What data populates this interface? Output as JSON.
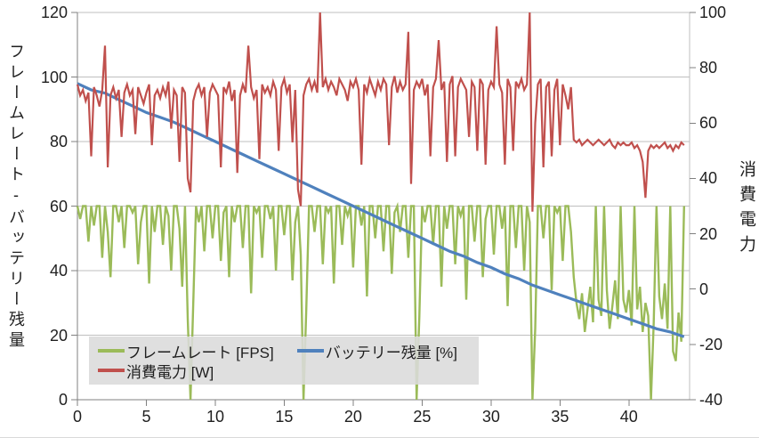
{
  "chart_data": {
    "type": "line",
    "title": "",
    "x_axis": {
      "min": 0,
      "max": 44.4,
      "tick_step": 5,
      "ticks": [
        0,
        5,
        10,
        15,
        20,
        25,
        30,
        35,
        40
      ]
    },
    "left_y_axis": {
      "title": "フレームレート-バッテリー残量",
      "min": 0,
      "max": 120,
      "tick_step": 20,
      "ticks": [
        120,
        100,
        80,
        60,
        40,
        20,
        0
      ]
    },
    "right_y_axis": {
      "title": "消費電力",
      "min": -40,
      "max": 100,
      "tick_step": 20,
      "ticks": [
        100,
        80,
        60,
        40,
        20,
        0,
        -20,
        -40
      ]
    },
    "grid": "horizontal-major-only",
    "legend": {
      "position": "bottom-left-inside"
    },
    "colors": {
      "grid": "#bfbfbf",
      "axis": "#808080",
      "legend_bg": "#dbdbdb"
    },
    "series": [
      {
        "name": "フレームレート [FPS]",
        "axis": "left",
        "color": "#9BBB59",
        "stroke_width": 2.4,
        "x_start": 0,
        "x_step": 0.2,
        "values": [
          60,
          56,
          60,
          60,
          49,
          60,
          54,
          60,
          60,
          44,
          60,
          52,
          38,
          60,
          60,
          55,
          60,
          47,
          60,
          60,
          58,
          60,
          42,
          55,
          60,
          60,
          36,
          60,
          52,
          60,
          60,
          48,
          60,
          57,
          40,
          60,
          60,
          53,
          35,
          60,
          25,
          0,
          30,
          60,
          55,
          60,
          46,
          60,
          60,
          50,
          60,
          60,
          43,
          58,
          60,
          38,
          60,
          55,
          60,
          60,
          47,
          60,
          60,
          33,
          60,
          58,
          60,
          44,
          60,
          60,
          56,
          60,
          40,
          60,
          60,
          51,
          60,
          60,
          37,
          55,
          60,
          45,
          0,
          28,
          60,
          60,
          52,
          60,
          60,
          42,
          60,
          58,
          60,
          36,
          60,
          60,
          48,
          60,
          57,
          60,
          41,
          60,
          60,
          54,
          60,
          32,
          60,
          60,
          50,
          60,
          60,
          46,
          60,
          60,
          39,
          58,
          60,
          52,
          60,
          60,
          44,
          60,
          60,
          0,
          26,
          60,
          55,
          60,
          60,
          48,
          60,
          60,
          35,
          60,
          53,
          60,
          60,
          42,
          60,
          57,
          60,
          31,
          60,
          60,
          49,
          60,
          60,
          38,
          56,
          60,
          60,
          45,
          60,
          60,
          53,
          60,
          29,
          60,
          60,
          47,
          60,
          60,
          40,
          60,
          55,
          0,
          22,
          60,
          60,
          50,
          60,
          60,
          34,
          60,
          58,
          60,
          43,
          60,
          60,
          52,
          38,
          30,
          25,
          33,
          21,
          28,
          35,
          24,
          60,
          31,
          26,
          60,
          34,
          22,
          29,
          37,
          25,
          60,
          31,
          27,
          34,
          23,
          60,
          28,
          35,
          21,
          30,
          26,
          0,
          24,
          60,
          32,
          25,
          36,
          22,
          60,
          15,
          12,
          27,
          18,
          60
        ]
      },
      {
        "name": "バッテリー残量 [%]",
        "axis": "left",
        "color": "#4F81BD",
        "stroke_width": 3.2,
        "x_start": 0,
        "x_step": 1,
        "values": [
          98,
          96,
          95,
          93,
          91,
          89,
          87.5,
          86,
          84,
          82,
          80,
          78,
          76,
          74,
          72,
          70,
          68,
          66,
          64,
          62,
          60,
          58,
          56,
          54,
          52,
          50,
          48,
          46,
          44.5,
          42.5,
          41,
          39,
          37.5,
          35.5,
          34,
          32.5,
          31,
          29.5,
          28,
          26.5,
          25,
          23.5,
          22,
          21,
          19.5
        ]
      },
      {
        "name": "消費電力 [W]",
        "axis": "right",
        "color": "#C0504D",
        "stroke_width": 2.2,
        "x_start": 0,
        "x_step": 0.2,
        "values": [
          74,
          70,
          72,
          68,
          71,
          48,
          73,
          70,
          66,
          72,
          88,
          44,
          70,
          73,
          69,
          72,
          55,
          71,
          74,
          70,
          72,
          56,
          73,
          70,
          67,
          71,
          74,
          52,
          70,
          72,
          69,
          73,
          70,
          75,
          58,
          72,
          70,
          46,
          73,
          71,
          40,
          35,
          68,
          72,
          74,
          70,
          73,
          55,
          71,
          74,
          72,
          70,
          44,
          73,
          71,
          75,
          68,
          72,
          42,
          70,
          74,
          71,
          88,
          73,
          69,
          72,
          47,
          74,
          71,
          73,
          70,
          75,
          72,
          50,
          73,
          76,
          71,
          74,
          53,
          72,
          36,
          30,
          70,
          74,
          76,
          72,
          75,
          71,
          100,
          73,
          76,
          72,
          75,
          73,
          70,
          76,
          74,
          72,
          68,
          75,
          73,
          76,
          72,
          45,
          74,
          71,
          76,
          73,
          70,
          75,
          72,
          76,
          74,
          52,
          73,
          77,
          71,
          75,
          72,
          74,
          93,
          38,
          72,
          75,
          73,
          76,
          70,
          74,
          48,
          73,
          76,
          90,
          72,
          75,
          46,
          74,
          77,
          48,
          73,
          76,
          74,
          72,
          55,
          75,
          73,
          50,
          76,
          74,
          45,
          72,
          75,
          73,
          95,
          74,
          71,
          45,
          76,
          73,
          50,
          75,
          73,
          76,
          72,
          74,
          100,
          28,
          60,
          74,
          76,
          44,
          73,
          75,
          48,
          72,
          76,
          52,
          74,
          70,
          65,
          73,
          54,
          53,
          54,
          52,
          53,
          54,
          53,
          52,
          53,
          54,
          53,
          52,
          53,
          54,
          52,
          51,
          53,
          52,
          53,
          52,
          52,
          53,
          51,
          52,
          50,
          46,
          33,
          50,
          52,
          51,
          52,
          51,
          52,
          53,
          51,
          52,
          50,
          52,
          51,
          53,
          52
        ]
      }
    ]
  },
  "legend": {
    "items": [
      {
        "label": "フレームレート [FPS]",
        "color": "#9BBB59"
      },
      {
        "label": "バッテリー残量 [%]",
        "color": "#4F81BD"
      },
      {
        "label": "消費電力 [W]",
        "color": "#C0504D"
      }
    ]
  }
}
